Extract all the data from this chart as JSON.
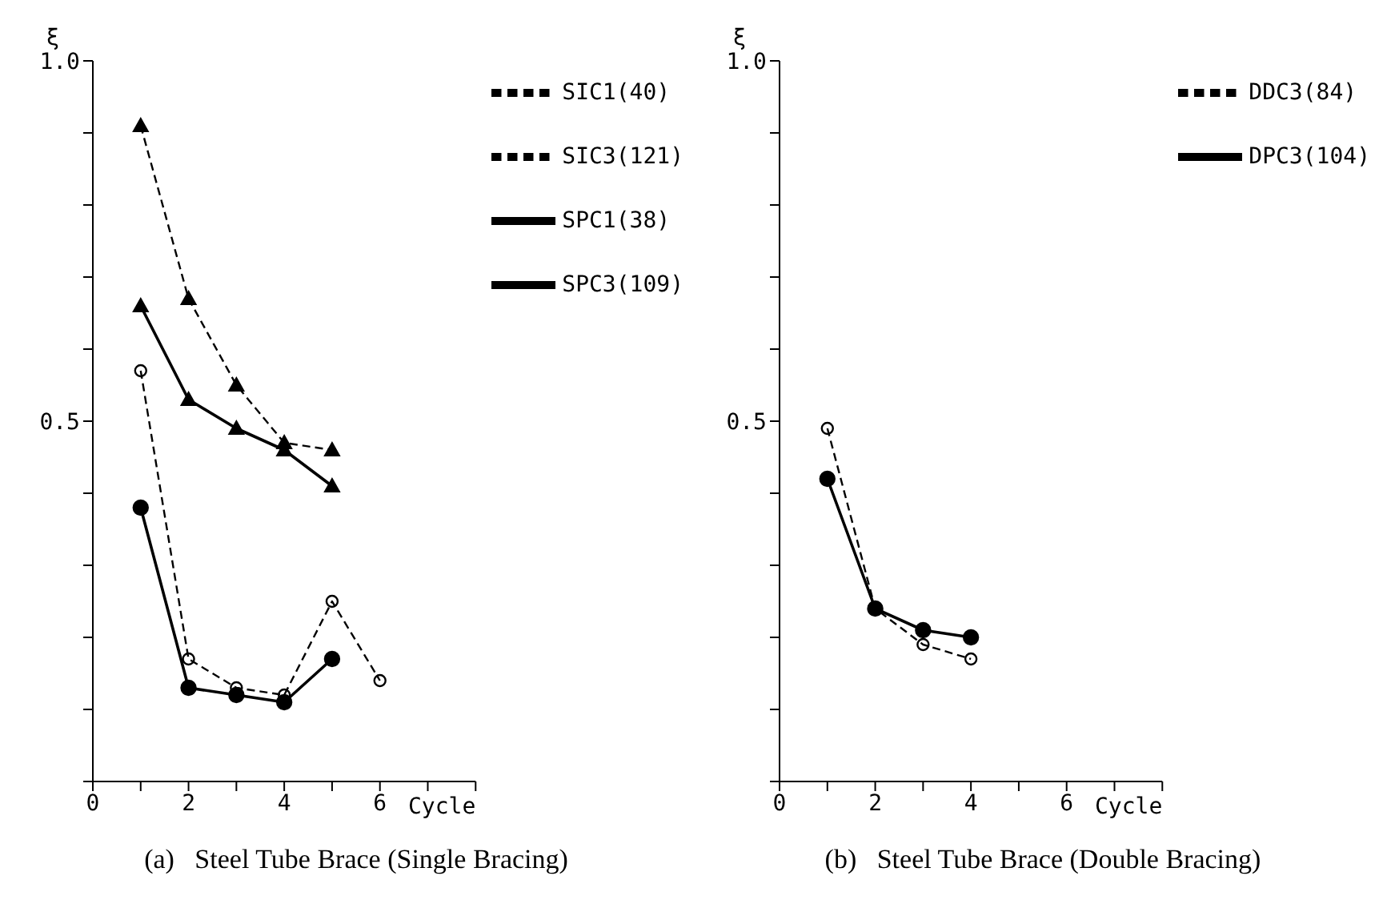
{
  "chart_data": [
    {
      "type": "line",
      "title": "(a)   Steel Tube Brace (Single Bracing)",
      "xlabel": "Cycle",
      "ylabel": "ξ",
      "xlim": [
        0,
        8
      ],
      "ylim": [
        0,
        1.0
      ],
      "xticks": [
        0,
        {
          "value": 1,
          "label": null
        },
        2,
        {
          "value": 3,
          "label": null
        },
        4,
        {
          "value": 5,
          "label": null
        },
        6,
        {
          "value": 7,
          "label": null
        },
        {
          "value": 8,
          "label": null
        }
      ],
      "yticks": [
        {
          "value": 0,
          "label": null
        },
        {
          "value": 0.1,
          "label": null
        },
        {
          "value": 0.2,
          "label": null
        },
        {
          "value": 0.3,
          "label": null
        },
        {
          "value": 0.4,
          "label": null
        },
        0.5,
        {
          "value": 0.6,
          "label": null
        },
        {
          "value": 0.7,
          "label": null
        },
        {
          "value": 0.8,
          "label": null
        },
        {
          "value": 0.9,
          "label": null
        },
        {
          "value": 1.0,
          "label": "1.0"
        }
      ],
      "grid": false,
      "legend": "top right",
      "series": [
        {
          "name": "SPC1(38)",
          "color": "#000000",
          "marker": "triangle",
          "line_style": "solid",
          "x": [
            1,
            2,
            3,
            4,
            5
          ],
          "values": [
            0.66,
            0.53,
            0.49,
            0.46,
            0.41
          ]
        },
        {
          "name": "SPC3(109)",
          "color": "#000000",
          "marker": "circle",
          "line_style": "solid",
          "x": [
            1,
            2,
            3,
            4,
            5
          ],
          "values": [
            0.38,
            0.13,
            0.12,
            0.11,
            0.17
          ]
        },
        {
          "name": "SIC1(40)",
          "color": "#000000",
          "marker": "triangle",
          "line_style": "dashed",
          "x": [
            1,
            2,
            3,
            4,
            5
          ],
          "values": [
            0.91,
            0.67,
            0.55,
            0.47,
            0.46
          ]
        },
        {
          "name": "SIC3(121)",
          "color": "#000000",
          "marker": "circle",
          "line_style": "dashed",
          "x": [
            1,
            2,
            3,
            4,
            5,
            6
          ],
          "values": [
            0.57,
            0.17,
            0.13,
            0.12,
            0.25,
            0.14
          ]
        }
      ]
    },
    {
      "type": "line",
      "title": "(b)   Steel Tube Brace (Double Bracing)",
      "xlabel": "Cycle",
      "ylabel": "ξ",
      "xlim": [
        0,
        8
      ],
      "ylim": [
        0,
        1.0
      ],
      "xticks": [
        0,
        {
          "value": 1,
          "label": null
        },
        2,
        {
          "value": 3,
          "label": null
        },
        4,
        {
          "value": 5,
          "label": null
        },
        6,
        {
          "value": 7,
          "label": null
        },
        {
          "value": 8,
          "label": null
        }
      ],
      "yticks": [
        {
          "value": 0,
          "label": null
        },
        {
          "value": 0.1,
          "label": null
        },
        {
          "value": 0.2,
          "label": null
        },
        {
          "value": 0.3,
          "label": null
        },
        {
          "value": 0.4,
          "label": null
        },
        0.5,
        {
          "value": 0.6,
          "label": null
        },
        {
          "value": 0.7,
          "label": null
        },
        {
          "value": 0.8,
          "label": null
        },
        {
          "value": 0.9,
          "label": null
        },
        {
          "value": 1.0,
          "label": "1.0"
        }
      ],
      "grid": false,
      "legend": "top right",
      "series": [
        {
          "name": "DPC3(104)",
          "color": "#000000",
          "marker": "circle",
          "line_style": "solid",
          "x": [
            1,
            2,
            3,
            4
          ],
          "values": [
            0.42,
            0.24,
            0.21,
            0.2
          ]
        },
        {
          "name": "DDC3(84)",
          "color": "#000000",
          "marker": "circle",
          "line_style": "dashed",
          "x": [
            1,
            2,
            3,
            4
          ],
          "values": [
            0.49,
            0.24,
            0.19,
            0.17
          ]
        }
      ]
    }
  ]
}
